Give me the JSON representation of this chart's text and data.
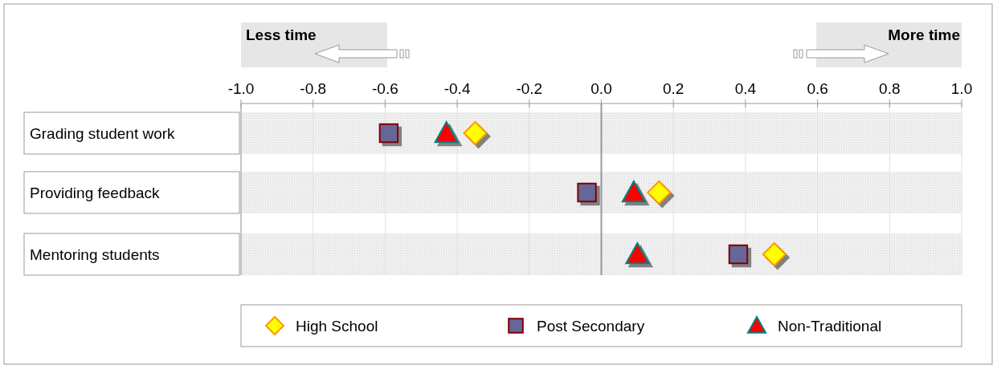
{
  "chart_data": {
    "type": "scatter",
    "orientation": "horizontal",
    "categories": [
      "Grading student work",
      "Providing feedback",
      "Mentoring students"
    ],
    "series": [
      {
        "name": "High School",
        "color": "#ffff00",
        "marker": "diamond",
        "values": [
          -0.35,
          0.16,
          0.48
        ]
      },
      {
        "name": "Post Secondary",
        "color": "#666699",
        "marker": "square",
        "values": [
          -0.59,
          -0.04,
          0.38
        ]
      },
      {
        "name": "Non-Traditional",
        "color": "#ff0000",
        "marker": "triangle",
        "values": [
          -0.43,
          0.09,
          0.1
        ]
      }
    ],
    "xlim": [
      -1,
      1
    ],
    "xticks": [
      {
        "value": -1,
        "label": "-1.0"
      },
      {
        "value": -0.8,
        "label": "-0.8"
      },
      {
        "value": -0.6,
        "label": "-0.6"
      },
      {
        "value": -0.4,
        "label": "-0.4"
      },
      {
        "value": -0.2,
        "label": "-0.2"
      },
      {
        "value": 0,
        "label": "0.0"
      },
      {
        "value": 0.2,
        "label": "0.2"
      },
      {
        "value": 0.4,
        "label": "0.4"
      },
      {
        "value": 0.6,
        "label": "0.6"
      },
      {
        "value": 0.8,
        "label": "0.8"
      },
      {
        "value": 1,
        "label": "1.0"
      }
    ],
    "ref_lines": [
      {
        "axis": "x",
        "value": 0,
        "color": "#999999"
      }
    ],
    "grid": "x",
    "legend": "bottom",
    "annotations": [
      "Less time",
      "More time"
    ]
  }
}
